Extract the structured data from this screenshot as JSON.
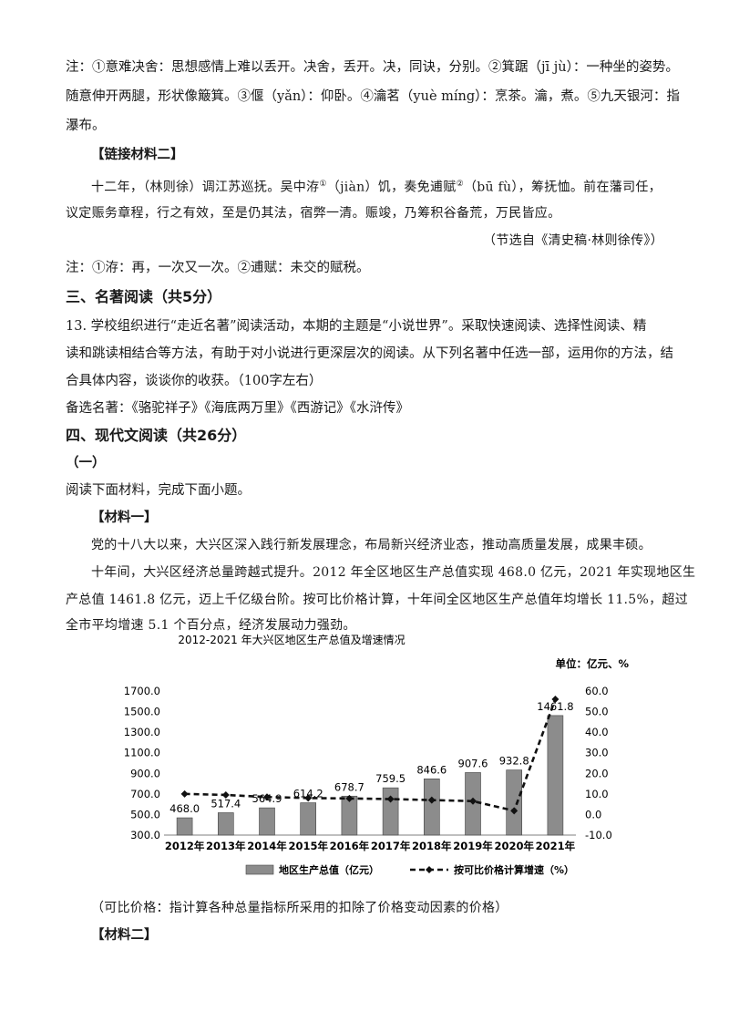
{
  "text": {
    "l1": "注：①意难决舍：思想感情上难以丢开。决舍，丢开。决，同诀，分别。②箕踞（jī jù）：一种坐的姿势。",
    "l2": "随意伸开两腿，形状像簸箕。③偃（yǎn）：仰卧。④瀹茗（yuè míng）：烹茶。瀹，煮。⑤九天银河：指",
    "l3": "瀑布。",
    "l4": "【链接材料二】",
    "l5a": "十二年，（林则徐）调江苏巡抚。吴中洊",
    "l5b": "（jiàn）饥，奏免逋赋",
    "l5c": "（bū fù），筹抚恤。前在藩司任，",
    "l6": "议定赈务章程，行之有效，至是仍其法，宿弊一清。赈竣，乃筹积谷备荒，万民皆应。",
    "l7": "（节选自《清史稿·林则徐传》）",
    "l8": "注：①洊：再，一次又一次。②逋赋：未交的赋税。",
    "h3": "三、名著阅读（共5分）",
    "l9": "13. 学校组织进行“走近名著”阅读活动，本期的主题是“小说世界”。采取快速阅读、选择性阅读、精",
    "l10": "读和跳读相结合等方法，有助于对小说进行更深层次的阅读。从下列名著中任选一部，运用你的方法，结",
    "l11": "合具体内容，谈谈你的收获。（100字左右）",
    "l12": "备选名著：《骆驼祥子》《海底两万里》《西游记》《水浒传》",
    "h4": "四、现代文阅读（共26分）",
    "l13": "（一）",
    "l14": "阅读下面材料，完成下面小题。",
    "l15": "【材料一】",
    "l16": "党的十八大以来，大兴区深入践行新发展理念，布局新兴经济业态，推动高质量发展，成果丰硕。",
    "l17": "十年间，大兴区经济总量跨越式提升。2012 年全区地区生产总值实现 468.0 亿元，2021 年实现地区生",
    "l18": "产总值 1461.8 亿元，迈上千亿级台阶。按可比价格计算，十年间全区地区生产总值年均增长 11.5%，超过",
    "l19": "全市平均增速 5.1 个百分点，经济发展动力强劲。",
    "l20": "（可比价格：指计算各种总量指标所采用的扣除了价格变动因素的价格）",
    "l21": "【材料二】",
    "sup1": "①",
    "sup2": "②"
  },
  "chart_data": {
    "type": "bar",
    "title": "2012-2021 年大兴区地区生产总值及增速情况",
    "unit": "单位：亿元、%",
    "categories": [
      "2012年",
      "2013年",
      "2014年",
      "2015年",
      "2016年",
      "2017年",
      "2018年",
      "2019年",
      "2020年",
      "2021年"
    ],
    "series": [
      {
        "name": "地区生产总值（亿元）",
        "type": "bar",
        "axis": "left",
        "values": [
          468.0,
          517.4,
          564.9,
          614.2,
          678.7,
          759.5,
          846.6,
          907.6,
          932.8,
          1461.8
        ],
        "labels": [
          "468.0",
          "517.4",
          "564.9",
          "614.2",
          "678.7",
          "759.5",
          "846.6",
          "907.6",
          "932.8",
          "1461.8"
        ]
      },
      {
        "name": "按可比价格计算增速（%）",
        "type": "line",
        "axis": "right",
        "values": [
          10.0,
          9.5,
          8.5,
          8.0,
          7.8,
          7.5,
          7.0,
          6.5,
          1.8,
          56.0
        ]
      }
    ],
    "left_ticks": [
      "1700.0",
      "1500.0",
      "1300.0",
      "1100.0",
      "900.0",
      "700.0",
      "500.0",
      "300.0"
    ],
    "right_ticks": [
      "60.0",
      "50.0",
      "40.0",
      "30.0",
      "20.0",
      "10.0",
      "0.0",
      "-10.0"
    ],
    "ylim_left": [
      300,
      1700
    ],
    "ylim_right": [
      -10,
      60
    ],
    "colors": {
      "bar": "#8c8c8c",
      "line": "#111111"
    }
  }
}
